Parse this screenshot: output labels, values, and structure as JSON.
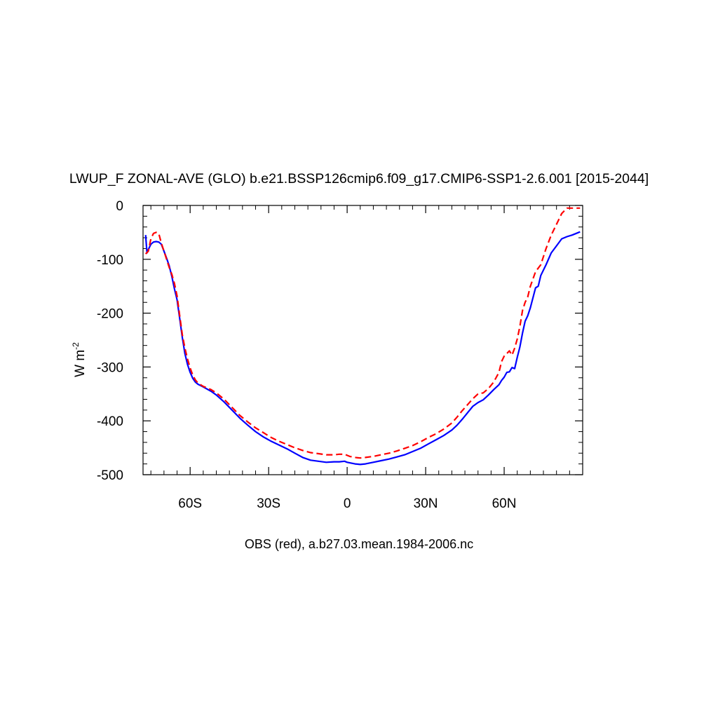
{
  "chart_data": {
    "type": "line",
    "title": "LWUP_F ZONAL-AVE (GLO) b.e21.BSSP126cmip6.f09_g17.CMIP6-SSP1-2.6.001 [2015-2044]",
    "subtitle": "OBS (red), a.b27.03.mean.1984-2006.nc",
    "ylabel": "W m",
    "ylabel_superscript": "-2",
    "xlim": [
      -78,
      90
    ],
    "ylim": [
      -500,
      0
    ],
    "x_ticks": [
      {
        "value": -60,
        "label": "60S"
      },
      {
        "value": -30,
        "label": "30S"
      },
      {
        "value": 0,
        "label": "0"
      },
      {
        "value": 30,
        "label": "30N"
      },
      {
        "value": 60,
        "label": "60N"
      }
    ],
    "y_ticks": [
      {
        "value": 0,
        "label": "0"
      },
      {
        "value": -100,
        "label": "-100"
      },
      {
        "value": -200,
        "label": "-200"
      },
      {
        "value": -300,
        "label": "-300"
      },
      {
        "value": -400,
        "label": "-400"
      },
      {
        "value": -500,
        "label": "-500"
      }
    ],
    "series": [
      {
        "color": "#0000ff",
        "dash": "solid",
        "x": [
          -77,
          -76.5,
          -76,
          -75,
          -74,
          -73,
          -72,
          -71,
          -70,
          -69,
          -68,
          -67,
          -66,
          -65,
          -64,
          -63,
          -62,
          -61,
          -60,
          -59,
          -58,
          -57,
          -55,
          -52,
          -50,
          -47,
          -44,
          -41,
          -38,
          -35,
          -32,
          -29,
          -26,
          -23,
          -20,
          -17,
          -14,
          -11,
          -8,
          -5,
          -3,
          -1,
          0,
          1,
          3,
          5,
          7,
          10,
          13,
          16,
          19,
          22,
          25,
          28,
          31,
          34,
          37,
          40,
          42,
          44,
          46,
          48,
          50,
          52,
          54,
          56,
          58,
          59,
          60,
          61,
          62,
          63,
          64,
          65,
          66,
          67,
          68,
          69,
          70,
          72,
          73,
          74,
          76,
          78,
          80,
          82,
          84,
          86,
          88,
          89
        ],
        "y": [
          -55,
          -88,
          -82,
          -72,
          -68,
          -67,
          -68,
          -72,
          -85,
          -98,
          -112,
          -132,
          -155,
          -175,
          -210,
          -245,
          -275,
          -295,
          -310,
          -321,
          -328,
          -332,
          -337,
          -345,
          -352,
          -365,
          -380,
          -395,
          -408,
          -420,
          -430,
          -438,
          -445,
          -452,
          -460,
          -468,
          -473,
          -475,
          -477,
          -476,
          -476,
          -475,
          -477,
          -478,
          -480,
          -481,
          -480,
          -477,
          -474,
          -471,
          -467,
          -463,
          -457,
          -451,
          -443,
          -435,
          -427,
          -417,
          -408,
          -397,
          -385,
          -373,
          -366,
          -361,
          -352,
          -342,
          -333,
          -325,
          -319,
          -310,
          -309,
          -301,
          -303,
          -282,
          -263,
          -237,
          -215,
          -205,
          -190,
          -153,
          -150,
          -130,
          -110,
          -88,
          -75,
          -62,
          -58,
          -55,
          -51,
          -49
        ],
        "name": ""
      },
      {
        "color": "#ff0000",
        "dash": "dashed",
        "x": [
          -77,
          -76,
          -75,
          -74,
          -73,
          -72,
          -71,
          -70,
          -69,
          -68,
          -67,
          -66,
          -65,
          -64,
          -63,
          -62,
          -61,
          -60,
          -59,
          -58,
          -57,
          -55,
          -52,
          -50,
          -47,
          -44,
          -41,
          -38,
          -35,
          -32,
          -29,
          -26,
          -23,
          -20,
          -17,
          -14,
          -11,
          -8,
          -5,
          -3,
          -1,
          0,
          1,
          3,
          5,
          7,
          10,
          13,
          16,
          19,
          22,
          25,
          28,
          31,
          34,
          37,
          40,
          42,
          44,
          46,
          48,
          50,
          52,
          54,
          56,
          58,
          59,
          60,
          61,
          62,
          63,
          64,
          65,
          66,
          67,
          68,
          69,
          70,
          72,
          74,
          76,
          78,
          79,
          80,
          82,
          84,
          86,
          88,
          89
        ],
        "y": [
          -90,
          -85,
          -62,
          -52,
          -50,
          -52,
          -70,
          -85,
          -100,
          -115,
          -128,
          -145,
          -168,
          -205,
          -240,
          -265,
          -285,
          -302,
          -315,
          -324,
          -330,
          -336,
          -342,
          -348,
          -360,
          -375,
          -390,
          -402,
          -413,
          -422,
          -431,
          -438,
          -444,
          -450,
          -455,
          -459,
          -461,
          -463,
          -463,
          -462,
          -462,
          -464,
          -466,
          -468,
          -469,
          -468,
          -466,
          -463,
          -460,
          -456,
          -451,
          -446,
          -439,
          -431,
          -424,
          -415,
          -404,
          -393,
          -381,
          -370,
          -359,
          -350,
          -348,
          -340,
          -328,
          -310,
          -290,
          -280,
          -275,
          -270,
          -278,
          -265,
          -248,
          -225,
          -195,
          -180,
          -170,
          -150,
          -123,
          -110,
          -80,
          -55,
          -45,
          -35,
          -15,
          -5,
          -5,
          -5,
          -5
        ],
        "name": ""
      }
    ]
  }
}
